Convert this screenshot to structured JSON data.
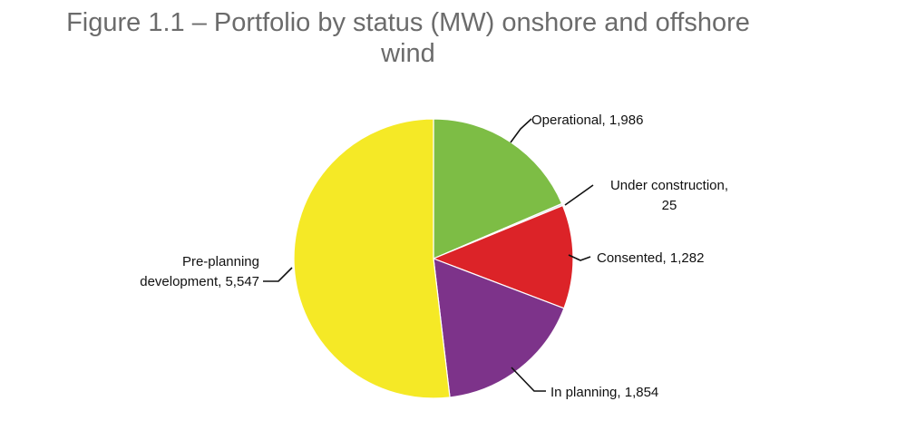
{
  "chart_data": {
    "type": "pie",
    "title_lines": [
      "Figure 1.1 – Portfolio by status (MW) onshore and offshore",
      "wind"
    ],
    "slices": [
      {
        "name": "Operational",
        "value": 1986,
        "value_label": "1,986",
        "color": "#7dbd45"
      },
      {
        "name": "Under construction",
        "value": 25,
        "value_label": "25",
        "color": "#d9dde0"
      },
      {
        "name": "Consented",
        "value": 1282,
        "value_label": "1,282",
        "color": "#dc2328"
      },
      {
        "name": "In planning",
        "value": 1854,
        "value_label": "1,854",
        "color": "#7d338a"
      },
      {
        "name": "Pre-planning development",
        "value": 5547,
        "value_label": "5,547",
        "color": "#f5e926"
      }
    ],
    "label_lines": [
      [
        "Operational, 1,986"
      ],
      [
        "Under construction,",
        "25"
      ],
      [
        "Consented, 1,282"
      ],
      [
        "In planning, 1,854"
      ],
      [
        "Pre-planning",
        "development, 5,547"
      ]
    ],
    "start": "12 o'clock",
    "direction": "clockwise",
    "legend": "none"
  }
}
